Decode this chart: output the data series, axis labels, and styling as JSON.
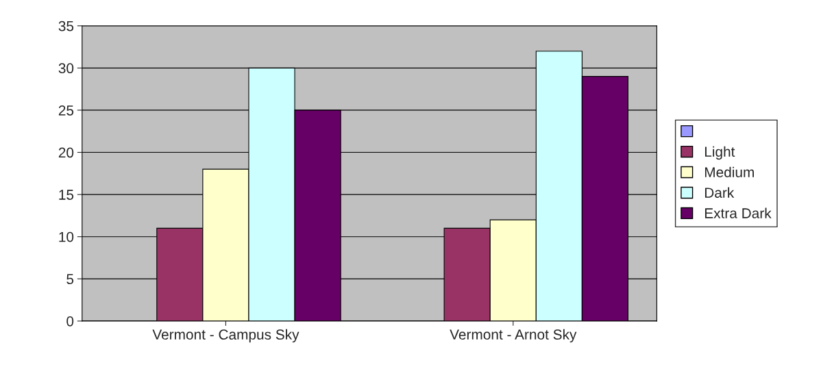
{
  "chart_data": {
    "type": "bar",
    "categories": [
      "Vermont - Campus Sky",
      "Vermont - Arnot Sky"
    ],
    "series": [
      {
        "color": "#9999ff",
        "values": [
          null,
          null
        ]
      },
      {
        "name": "Light",
        "color": "#993366",
        "values": [
          11,
          11
        ]
      },
      {
        "name": "Medium",
        "color": "#ffffcc",
        "values": [
          18,
          12
        ]
      },
      {
        "name": "Dark",
        "color": "#ccffff",
        "values": [
          30,
          32
        ]
      },
      {
        "name": "Extra Dark",
        "color": "#660066",
        "values": [
          25,
          29
        ]
      }
    ],
    "ylim": [
      0,
      35
    ],
    "yticks": [
      0,
      5,
      10,
      15,
      20,
      25,
      30,
      35
    ],
    "grid": "y",
    "legend": "right"
  }
}
